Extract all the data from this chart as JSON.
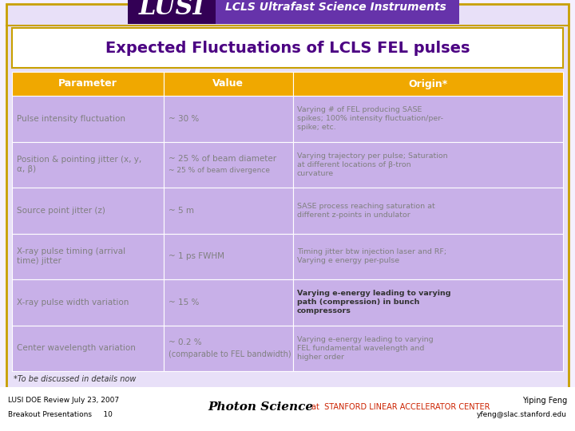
{
  "title": "Expected Fluctuations of LCLS FEL pulses",
  "header": [
    "Parameter",
    "Value",
    "Origin*"
  ],
  "rows": [
    {
      "param": "Pulse intensity fluctuation",
      "value": "~ 30 %",
      "origin": "Varying # of FEL producing SASE\nspikes; 100% intensity fluctuation/per-\nspike; etc.",
      "bold_origin": false
    },
    {
      "param": "Position & pointing jitter (x, y,\nα, β)",
      "value": "~ 25 % of beam diameter\n~ 25 % of beam divergence",
      "origin": "Varying trajectory per pulse; Saturation\nat different locations of β-tron\ncurvature",
      "bold_origin": false
    },
    {
      "param": "Source point jitter (z)",
      "value": "~ 5 m",
      "origin": "SASE process reaching saturation at\ndifferent z-points in undulator",
      "bold_origin": false
    },
    {
      "param": "X-ray pulse timing (arrival\ntime) jitter",
      "value": "~ 1 ps FWHM",
      "origin": "Timing jitter btw injection laser and RF;\nVarying e energy per-pulse",
      "bold_origin": false
    },
    {
      "param": "X-ray pulse width variation",
      "value": "~ 15 %",
      "origin": "Varying e-energy leading to varying\npath (compression) in bunch\ncompressors",
      "bold_origin": true
    },
    {
      "param": "Center wavelength variation",
      "value": "~ 0.2 %\n(comparable to FEL bandwidth)",
      "origin": "Varying e-energy leading to varying\nFEL fundamental wavelength and\nhigher order",
      "bold_origin": false
    }
  ],
  "footer_note": "*To be discussed in details now",
  "header_bg": "#F0A800",
  "row_bg": "#C8B0E8",
  "slide_bg": "#E8E0F8",
  "title_bg": "#FFFFFF",
  "outer_bg": "#D0B8E8",
  "header_text_color": "#FFFFFF",
  "row_text_color": "#808080",
  "title_color": "#4B0082",
  "lusi_bar_bg_left": "#330066",
  "lusi_bar_bg_right": "#9966CC",
  "bottom_bg": "#FFFFFF",
  "table_border_color": "#9060A0",
  "title_border_color": "#C8A000",
  "slide_border_color": "#C8A000"
}
